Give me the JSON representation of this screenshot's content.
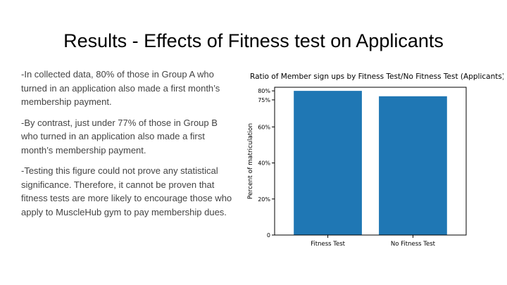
{
  "slide": {
    "title": "Results - Effects of Fitness test on Applicants",
    "paragraphs": [
      "-In collected data, 80% of those in Group A who turned in an application also made a first month’s membership payment.",
      "-By contrast, just under 77% of those in Group B who turned in an application also made a first month’s membership payment.",
      "-Testing this figure could not prove any statistical significance. Therefore, it cannot be proven that fitness tests are more likely to encourage those who apply to MuscleHub gym to pay membership dues."
    ]
  },
  "chart_data": {
    "type": "bar",
    "title": "Ratio of Member sign ups by Fitness Test/No Fitness Test (Applicants)",
    "xlabel": "",
    "ylabel": "Percent of matriculation",
    "categories": [
      "Fitness Test",
      "No Fitness Test"
    ],
    "values": [
      0.8,
      0.77
    ],
    "ylim": [
      0,
      0.82
    ],
    "yticks": [
      0,
      0.2,
      0.4,
      0.6,
      0.75,
      0.8
    ],
    "ytick_labels": [
      "0",
      "20%",
      "40%",
      "60%",
      "75%",
      "80%"
    ],
    "grid": false,
    "bar_color": "#1f77b4"
  }
}
